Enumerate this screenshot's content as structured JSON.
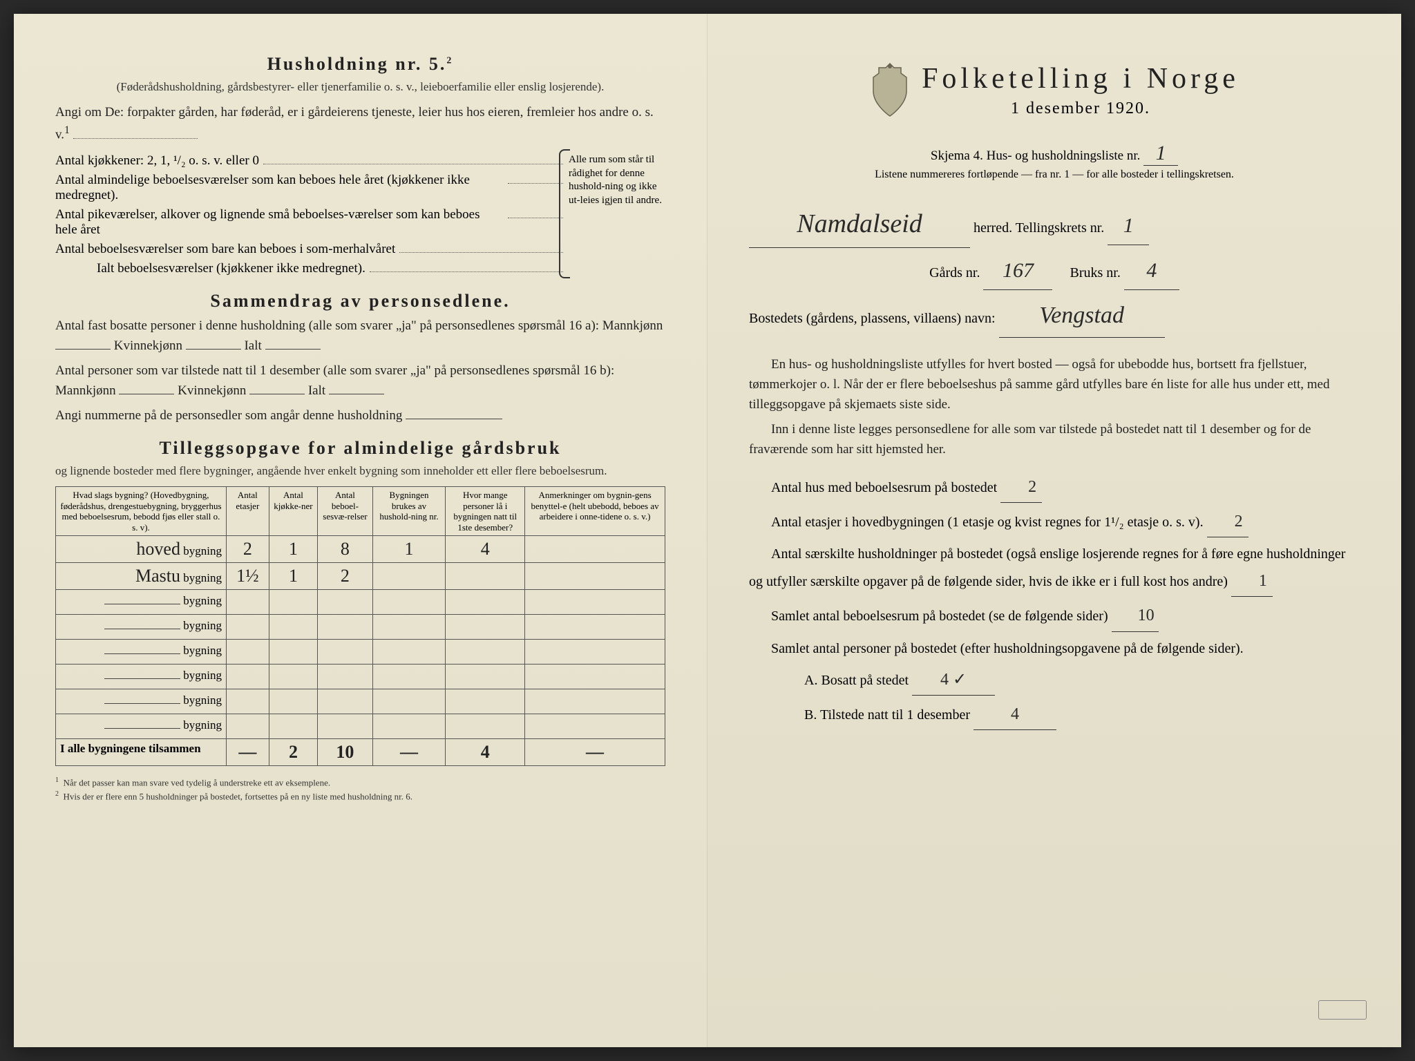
{
  "left": {
    "heading": "Husholdning nr. 5.",
    "heading_sup": "2",
    "sub1": "(Føderådshusholdning, gårdsbestyrer- eller tjenerfamilie o. s. v., leieboerfamilie eller enslig losjerende).",
    "angi": "Angi om De:  forpakter gården, har føderåd, er i gårdeierens tjeneste, leier hus hos eieren, fremleier hos andre o. s. v.",
    "angi_sup": "1",
    "kitchens": "Antal kjøkkener: 2, 1, ¹/₂ o. s. v. eller 0",
    "rooms1": "Antal almindelige beboelsesværelser som kan beboes hele året (kjøkkener ikke medregnet).",
    "rooms2": "Antal pikeværelser, alkover og lignende små beboelses-værelser som kan beboes hele året",
    "rooms3": "Antal beboelsesværelser som bare kan beboes i som-merhalvåret",
    "ialt": "Ialt beboelsesværelser (kjøkkener ikke medregnet).",
    "brace_text": "Alle rum som står til rådighet for denne hushold-ning og ikke ut-leies igjen til andre.",
    "sammendrag_h": "Sammendrag av personsedlene.",
    "s_line1a": "Antal fast bosatte personer i denne husholdning (alle som svarer „ja\" på personsedlenes spørsmål 16 a): Mannkjønn",
    "s_kv": "Kvinnekjønn",
    "s_ialt": "Ialt",
    "s_line2a": "Antal personer som var tilstede natt til 1 desember (alle som svarer „ja\" på personsedlenes spørsmål 16 b): Mannkjønn",
    "s_line3": "Angi nummerne på de personsedler som angår denne husholdning",
    "tillegg_h": "Tilleggsopgave for almindelige gårdsbruk",
    "tillegg_sub": "og lignende bosteder med flere bygninger, angående hver enkelt bygning som inneholder ett eller flere beboelsesrum.",
    "table": {
      "headers": [
        "Hvad slags bygning?\n(Hovedbygning, føderådshus, drengestuebygning, bryggerhus med beboelsesrum, bebodd fjøs eller stall o. s. v).",
        "Antal etasjer",
        "Antal kjøkke-ner",
        "Antal beboel-sesvæ-relser",
        "Bygningen brukes av hushold-ning nr.",
        "Hvor mange personer lå i bygningen natt til 1ste desember?",
        "Anmerkninger om bygnin-gens benyttel-e (helt ubebodd, beboes av arbeidere i onne-tidene o. s. v.)"
      ],
      "col_widths": [
        "28%",
        "7%",
        "8%",
        "9%",
        "12%",
        "13%",
        "23%"
      ],
      "row_label": "bygning",
      "rows": [
        {
          "name": "hoved",
          "etasjer": "2",
          "kjokken": "1",
          "bebo": "8",
          "hush": "1",
          "pers": "4",
          "anm": ""
        },
        {
          "name": "Mastu",
          "etasjer": "1½",
          "kjokken": "1",
          "bebo": "2",
          "hush": "",
          "pers": "",
          "anm": ""
        },
        {
          "name": "",
          "etasjer": "",
          "kjokken": "",
          "bebo": "",
          "hush": "",
          "pers": "",
          "anm": ""
        },
        {
          "name": "",
          "etasjer": "",
          "kjokken": "",
          "bebo": "",
          "hush": "",
          "pers": "",
          "anm": ""
        },
        {
          "name": "",
          "etasjer": "",
          "kjokken": "",
          "bebo": "",
          "hush": "",
          "pers": "",
          "anm": ""
        },
        {
          "name": "",
          "etasjer": "",
          "kjokken": "",
          "bebo": "",
          "hush": "",
          "pers": "",
          "anm": ""
        },
        {
          "name": "",
          "etasjer": "",
          "kjokken": "",
          "bebo": "",
          "hush": "",
          "pers": "",
          "anm": ""
        },
        {
          "name": "",
          "etasjer": "",
          "kjokken": "",
          "bebo": "",
          "hush": "",
          "pers": "",
          "anm": ""
        }
      ],
      "total_label": "I alle bygningene tilsammen",
      "totals": {
        "etasjer": "—",
        "kjokken": "2",
        "bebo": "10",
        "hush": "—",
        "pers": "4",
        "anm": "—"
      }
    },
    "fn1": "Når det passer kan man svare ved tydelig å understreke ett av eksemplene.",
    "fn2": "Hvis der er flere enn 5 husholdninger på bostedet, fortsettes på en ny liste med husholdning nr. 6."
  },
  "right": {
    "title": "Folketelling i Norge",
    "date": "1 desember 1920.",
    "skjema_pre": "Skjema 4.  Hus- og husholdningsliste nr.",
    "skjema_nr": "1",
    "listene": "Listene nummereres fortløpende — fra nr. 1 — for alle bosteder i tellingskretsen.",
    "herred_val": "Namdalseid",
    "herred_lbl": "herred.   Tellingskrets nr.",
    "krets_nr": "1",
    "gards_lbl": "Gårds nr.",
    "gards_nr": "167",
    "bruks_lbl": "Bruks nr.",
    "bruks_nr": "4",
    "bosted_lbl": "Bostedets (gårdens, plassens, villaens) navn:",
    "bosted_val": "Vengstad",
    "p1": "En hus- og husholdningsliste utfylles for hvert bosted — også for ubebodde hus, bortsett fra fjellstuer, tømmerkojer o. l.  Når der er flere beboelseshus på samme gård utfylles bare én liste for alle hus under ett, med tilleggsopgave på skjemaets siste side.",
    "p2": "Inn i denne liste legges personsedlene for alle som var tilstede på bostedet natt til 1 desember og for de fraværende som har sitt hjemsted her.",
    "q1_lbl": "Antal hus med beboelsesrum på bostedet",
    "q1_val": "2",
    "q2_lbl": "Antal etasjer i hovedbygningen (1 etasje og kvist regnes for 1¹/₂ etasje o. s. v).",
    "q2_val": "2",
    "q3_lbl": "Antal særskilte husholdninger på bostedet (også enslige losjerende regnes for å føre egne husholdninger og utfyller særskilte opgaver på de følgende sider, hvis de ikke er i full kost hos andre)",
    "q3_val": "1",
    "q4_lbl": "Samlet antal beboelsesrum på bostedet (se de følgende sider)",
    "q4_val": "10",
    "q5_lbl": "Samlet antal personer på bostedet (efter husholdningsopgavene på de følgende sider).",
    "qA_lbl": "A.  Bosatt på stedet",
    "qA_val": "4 ✓",
    "qB_lbl": "B.  Tilstede natt til 1 desember",
    "qB_val": "4"
  },
  "colors": {
    "paper": "#e8e4d0",
    "ink": "#222222",
    "rule": "#555555"
  }
}
